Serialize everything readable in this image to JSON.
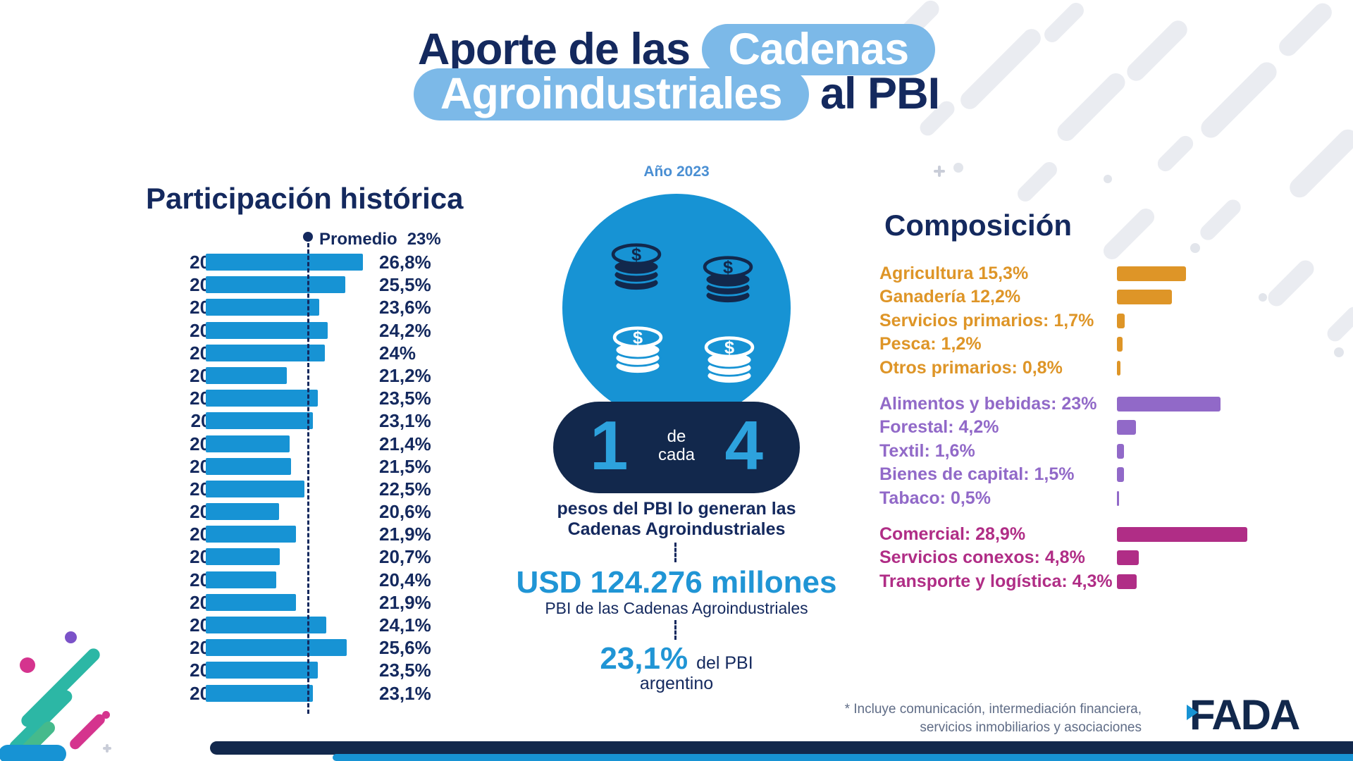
{
  "header": {
    "title_line1_plain": "Aporte de las",
    "title_line1_highlight": "Cadenas",
    "title_line2_highlight": "Agroindustriales",
    "title_line2_plain": "al PBI",
    "year_label": "Año 2023"
  },
  "center": {
    "ratio_first": "1",
    "ratio_mid_line1": "de",
    "ratio_mid_line2": "cada",
    "ratio_second": "4",
    "ratio_caption_line1": "pesos del PBI lo generan las",
    "ratio_caption_line2": "Cadenas Agroindustriales",
    "usd_value": "USD 124.276 millones",
    "usd_caption": "PBI de las Cadenas Agroindustriales",
    "pbi_pct": "23,1%",
    "pbi_caption_inline": "del PBI",
    "pbi_caption_line2": "argentino"
  },
  "footnote": {
    "line1": "* Incluye comunicación, intermediación financiera,",
    "line2": "servicios inmobiliarios y asociaciones"
  },
  "logo_text": "FADA",
  "colors": {
    "navy": "#14295e",
    "bar_blue": "#1793d4",
    "highlight_blue": "#7cb9e8",
    "usd_blue": "#2095d5",
    "primary_group_orange": "#de9527",
    "industrial_group_purple": "#9169c8",
    "services_group_magenta": "#b02d86"
  },
  "chart_data": [
    {
      "type": "bar",
      "orientation": "horizontal",
      "title": "Participación histórica",
      "average_label": "Promedio",
      "average_display": "23%",
      "average_value": 23,
      "bar_color": "#1793d4",
      "xlim": [
        15.2,
        27.5
      ],
      "grid": false,
      "categories": [
        "2004",
        "2005",
        "2006",
        "2007",
        "2008",
        "2009",
        "2010",
        "2011",
        "2012",
        "2013",
        "2014",
        "2015",
        "2016",
        "2017",
        "2018",
        "2019",
        "2020",
        "2021",
        "2022",
        "2023"
      ],
      "values": [
        26.8,
        25.5,
        23.6,
        24.2,
        24,
        21.2,
        23.5,
        23.1,
        21.4,
        21.5,
        22.5,
        20.6,
        21.9,
        20.7,
        20.4,
        21.9,
        24.1,
        25.6,
        23.5,
        23.1
      ],
      "value_labels": [
        "26,8%",
        "25,5%",
        "23,6%",
        "24,2%",
        "24%",
        "21,2%",
        "23,5%",
        "23,1%",
        "21,4%",
        "21,5%",
        "22,5%",
        "20,6%",
        "21,9%",
        "20,7%",
        "20,4%",
        "21,9%",
        "24,1%",
        "25,6%",
        "23,5%",
        "23,1%"
      ]
    },
    {
      "type": "bar",
      "orientation": "horizontal",
      "title": "Composición",
      "grid": false,
      "groups": [
        {
          "name": "primario",
          "color": "#de9527",
          "items": [
            {
              "label": "Agricultura 15,3%",
              "value": 15.3
            },
            {
              "label": "Ganadería 12,2%",
              "value": 12.2
            },
            {
              "label": "Servicios primarios: 1,7%",
              "value": 1.7
            },
            {
              "label": "Pesca: 1,2%",
              "value": 1.2
            },
            {
              "label": "Otros primarios: 0,8%",
              "value": 0.8
            }
          ]
        },
        {
          "name": "industrial",
          "color": "#9169c8",
          "items": [
            {
              "label": "Alimentos y bebidas: 23%",
              "value": 23
            },
            {
              "label": "Forestal: 4,2%",
              "value": 4.2
            },
            {
              "label": "Textil: 1,6%",
              "value": 1.6
            },
            {
              "label": "Bienes de capital: 1,5%",
              "value": 1.5
            },
            {
              "label": "Tabaco: 0,5%",
              "value": 0.5
            }
          ]
        },
        {
          "name": "servicios",
          "color": "#b02d86",
          "items": [
            {
              "label": "Comercial: 28,9%",
              "value": 28.9
            },
            {
              "label": "Servicios conexos: 4,8%",
              "value": 4.8
            },
            {
              "label": "Transporte y logística: 4,3%",
              "value": 4.3
            }
          ]
        }
      ]
    }
  ]
}
